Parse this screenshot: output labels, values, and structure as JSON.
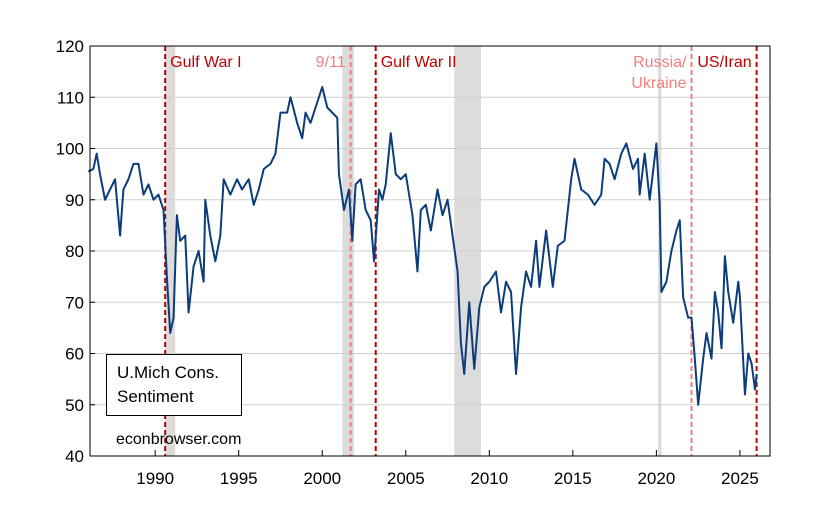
{
  "chart_data": {
    "type": "line",
    "x": [
      1986.0,
      1986.3,
      1986.5,
      1986.7,
      1987.0,
      1987.3,
      1987.6,
      1987.9,
      1988.1,
      1988.4,
      1988.7,
      1989.0,
      1989.3,
      1989.6,
      1989.9,
      1990.2,
      1990.5,
      1990.7,
      1990.9,
      1991.1,
      1991.3,
      1991.5,
      1991.8,
      1992.0,
      1992.3,
      1992.6,
      1992.9,
      1993.0,
      1993.3,
      1993.6,
      1993.9,
      1994.1,
      1994.5,
      1994.9,
      1995.2,
      1995.6,
      1995.9,
      1996.2,
      1996.5,
      1996.9,
      1997.2,
      1997.5,
      1997.9,
      1998.1,
      1998.5,
      1998.8,
      1999.0,
      1999.3,
      1999.6,
      2000.0,
      2000.3,
      2000.6,
      2000.9,
      2001.0,
      2001.3,
      2001.6,
      2001.8,
      2002.0,
      2002.3,
      2002.6,
      2002.9,
      2003.1,
      2003.4,
      2003.6,
      2003.8,
      2004.1,
      2004.4,
      2004.7,
      2005.0,
      2005.4,
      2005.7,
      2005.9,
      2006.2,
      2006.5,
      2006.9,
      2007.2,
      2007.5,
      2007.8,
      2008.1,
      2008.3,
      2008.5,
      2008.8,
      2009.1,
      2009.4,
      2009.7,
      2010.0,
      2010.4,
      2010.7,
      2011.0,
      2011.3,
      2011.6,
      2011.9,
      2012.2,
      2012.5,
      2012.8,
      2013.0,
      2013.4,
      2013.8,
      2014.1,
      2014.5,
      2014.9,
      2015.1,
      2015.5,
      2015.9,
      2016.3,
      2016.7,
      2016.9,
      2017.2,
      2017.5,
      2017.9,
      2018.2,
      2018.6,
      2018.9,
      2019.0,
      2019.3,
      2019.6,
      2020.0,
      2020.2,
      2020.3,
      2020.6,
      2020.9,
      2021.2,
      2021.4,
      2021.6,
      2021.9,
      2022.1,
      2022.3,
      2022.5,
      2022.8,
      2023.0,
      2023.3,
      2023.5,
      2023.7,
      2023.9,
      2024.1,
      2024.3,
      2024.6,
      2024.9,
      2025.0,
      2025.3,
      2025.5,
      2025.7,
      2025.9,
      2026.0
    ],
    "series": [
      {
        "name": "U.Mich Cons. Sentiment",
        "color": "#0b3d7a",
        "values": [
          95.5,
          96,
          99,
          95,
          90,
          92,
          94,
          83,
          92,
          94,
          97,
          97,
          91,
          93,
          90,
          91,
          88,
          75,
          64,
          67,
          87,
          82,
          83,
          68,
          77,
          80,
          74,
          90,
          83,
          78,
          83,
          94,
          91,
          94,
          92,
          94,
          89,
          92,
          96,
          97,
          99,
          107,
          107,
          110,
          105,
          102,
          107,
          105,
          108,
          112,
          108,
          107,
          106,
          95,
          88,
          92,
          82,
          93,
          94,
          88,
          86,
          78,
          92,
          90,
          93,
          103,
          95,
          94,
          95,
          87,
          76,
          88,
          89,
          84,
          92,
          87,
          90,
          83,
          76,
          62,
          56,
          70,
          57,
          69,
          73,
          74,
          76,
          68,
          74,
          72,
          56,
          69,
          76,
          73,
          82,
          73,
          84,
          73,
          81,
          82,
          94,
          98,
          92,
          91,
          89,
          91,
          98,
          97,
          94,
          99,
          101,
          96,
          98,
          91,
          99,
          90,
          101,
          89,
          72,
          74,
          80,
          84,
          86,
          71,
          67,
          67,
          59,
          50,
          59,
          64,
          59,
          72,
          68,
          61,
          79,
          72,
          66,
          74,
          71,
          52,
          60,
          58,
          53,
          56
        ]
      }
    ],
    "xlim": [
      1986.1,
      2026.8
    ],
    "ylim": [
      40,
      120
    ],
    "xticks": [
      1990,
      1995,
      2000,
      2005,
      2010,
      2015,
      2020,
      2025
    ],
    "yticks": [
      40,
      50,
      60,
      70,
      80,
      90,
      100,
      110,
      120
    ],
    "grid": true,
    "shaded_periods": [
      [
        1990.6,
        1991.2
      ],
      [
        2001.2,
        2001.9
      ],
      [
        2007.9,
        2009.5
      ],
      [
        2020.1,
        2020.3
      ]
    ],
    "events": [
      {
        "x": 1990.6,
        "lines": [
          "Gulf War I"
        ],
        "color": "#c00000",
        "side": "right"
      },
      {
        "x": 2001.7,
        "lines": [
          "9/11"
        ],
        "color": "#f08080",
        "side": "left"
      },
      {
        "x": 2003.2,
        "lines": [
          "Gulf War II"
        ],
        "color": "#c00000",
        "side": "right"
      },
      {
        "x": 2022.1,
        "lines": [
          "Russia/",
          "Ukraine"
        ],
        "color": "#f08080",
        "side": "left"
      },
      {
        "x": 2026.0,
        "lines": [
          "US/Iran"
        ],
        "color": "#c00000",
        "side": "left"
      }
    ],
    "annotation": "econbrowser.com"
  }
}
